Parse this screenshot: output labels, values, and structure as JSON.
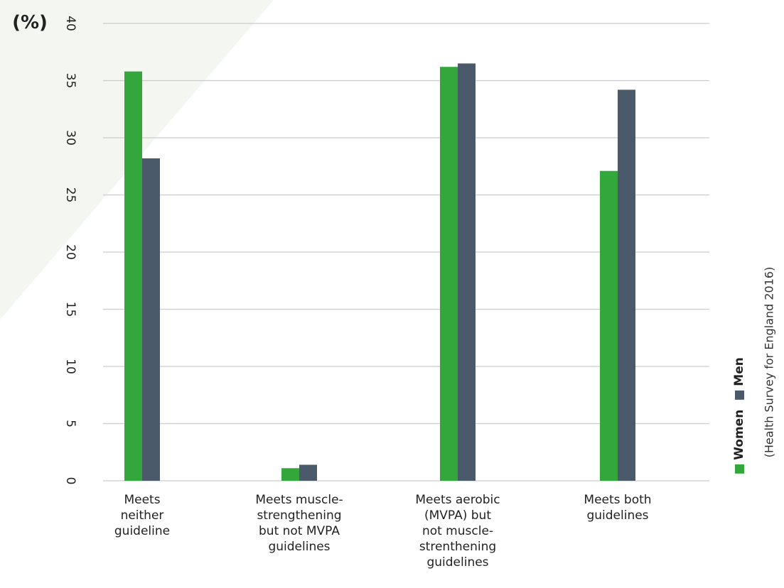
{
  "colors": {
    "women": "#33a63c",
    "men": "#4a5a6b",
    "grid": "#cccccc",
    "background_shape": "#f4f6f2"
  },
  "source": "(Health Survey for England 2016)",
  "chart_data": {
    "type": "bar",
    "ylabel": "(%)",
    "ylim": [
      0,
      40
    ],
    "yticks": [
      "0",
      "5",
      "10",
      "15",
      "20",
      "25",
      "30",
      "35",
      "40"
    ],
    "grid": true,
    "legend_placement": "right",
    "categories": [
      "Meets neither guideline",
      "Meets muscle-strengthening but not MVPA guidelines",
      "Meets aerobic (MVPA) but not muscle-strenthening guidelines",
      "Meets both guidelines"
    ],
    "category_lines": [
      [
        "Meets",
        "neither",
        "guideline"
      ],
      [
        "Meets muscle-",
        "strengthening",
        "but not MVPA",
        "guidelines"
      ],
      [
        "Meets aerobic",
        "(MVPA) but",
        "not muscle-",
        "strenthening",
        "guidelines"
      ],
      [
        "Meets both",
        "guidelines"
      ]
    ],
    "series": [
      {
        "name": "Women",
        "values": [
          35.8,
          1.1,
          36.2,
          27.1
        ]
      },
      {
        "name": "Men",
        "values": [
          28.2,
          1.4,
          36.5,
          34.2
        ]
      }
    ]
  }
}
